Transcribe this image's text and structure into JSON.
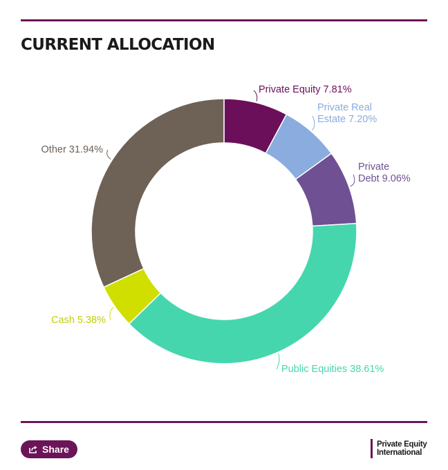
{
  "header": {
    "title": "CURRENT ALLOCATION"
  },
  "chart_data": {
    "type": "pie",
    "variant": "donut",
    "title": "CURRENT ALLOCATION",
    "slices": [
      {
        "name": "Private Equity",
        "value": 7.81,
        "label": "Private Equity 7.81%",
        "color": "#6b0f5a"
      },
      {
        "name": "Private Real Estate",
        "value": 7.2,
        "label": "Private Real Estate 7.20%",
        "color": "#8aacdf"
      },
      {
        "name": "Private Debt",
        "value": 9.06,
        "label": "Private Debt 9.06%",
        "color": "#6e5093"
      },
      {
        "name": "Public Equities",
        "value": 38.61,
        "label": "Public Equities 38.61%",
        "color": "#45d6ad"
      },
      {
        "name": "Cash",
        "value": 5.38,
        "label": "Cash 5.38%",
        "color": "#d0df00"
      },
      {
        "name": "Other",
        "value": 31.94,
        "label": "Other 31.94%",
        "color": "#6e6156"
      }
    ]
  },
  "footer": {
    "share_label": "Share",
    "brand_line1": "Private Equity",
    "brand_line2": "International"
  }
}
